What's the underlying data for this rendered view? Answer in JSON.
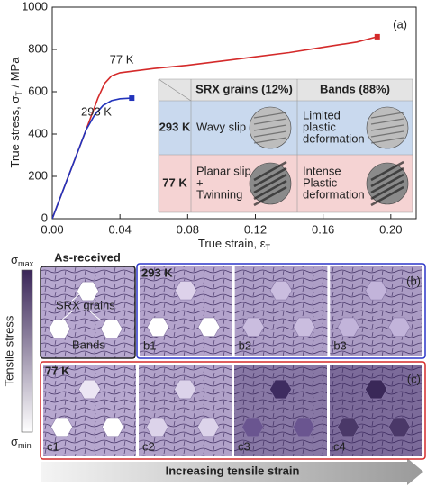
{
  "chart_data": {
    "type": "line",
    "x_label_parts": [
      "True strain, ε",
      "T"
    ],
    "y_label_parts": [
      "True stress, σ",
      "T",
      " / MPa"
    ],
    "panel_tag": "(a)",
    "xlim": [
      0,
      0.215
    ],
    "ylim": [
      0,
      1000
    ],
    "xticks": [
      {
        "value": 0,
        "label": "0.00"
      },
      0.04,
      0.08,
      0.12,
      0.16,
      {
        "value": 0.2,
        "label": "0.20"
      }
    ],
    "yticks": [
      0,
      200,
      400,
      600,
      800,
      1000
    ],
    "series": [
      {
        "name": "77 K",
        "color": "#d42a2a",
        "x": [
          0,
          0.01,
          0.02,
          0.027,
          0.031,
          0.035,
          0.04,
          0.06,
          0.08,
          0.1,
          0.12,
          0.14,
          0.16,
          0.18,
          0.192
        ],
        "values": [
          0,
          210,
          420,
          570,
          640,
          675,
          690,
          710,
          725,
          745,
          765,
          785,
          810,
          835,
          860
        ]
      },
      {
        "name": "293 K",
        "color": "#2233bb",
        "x": [
          0,
          0.01,
          0.02,
          0.025,
          0.03,
          0.035,
          0.04,
          0.047
        ],
        "values": [
          0,
          210,
          420,
          490,
          535,
          558,
          567,
          570
        ]
      }
    ]
  },
  "inset": {
    "header": [
      "SRX grains (12%)",
      "Bands (88%)"
    ],
    "rows": [
      {
        "label": "293 K",
        "srx": [
          "Wavy slip"
        ],
        "bands": [
          "Limited",
          "plastic",
          "deformation"
        ]
      },
      {
        "label": "77 K",
        "srx": [
          "Planar slip",
          "+",
          "Twinning"
        ],
        "bands": [
          "Intense",
          "Plastic",
          "deformation"
        ]
      }
    ]
  },
  "schematic": {
    "colorbar": {
      "title": "Tensile stress",
      "max_parts": [
        "σ",
        "max"
      ],
      "min_parts": [
        "σ",
        "min"
      ]
    },
    "as_received": {
      "title": "As-received",
      "labels": [
        "SRX grains",
        "Bands"
      ]
    },
    "row_293": {
      "label": "293 K",
      "tag": "(b)",
      "panels": [
        "b1",
        "b2",
        "b3"
      ]
    },
    "row_77": {
      "label": "77 K",
      "tag": "(c)",
      "panels": [
        "c1",
        "c2",
        "c3",
        "c4"
      ]
    },
    "arrow_text": "Increasing tensile strain"
  }
}
